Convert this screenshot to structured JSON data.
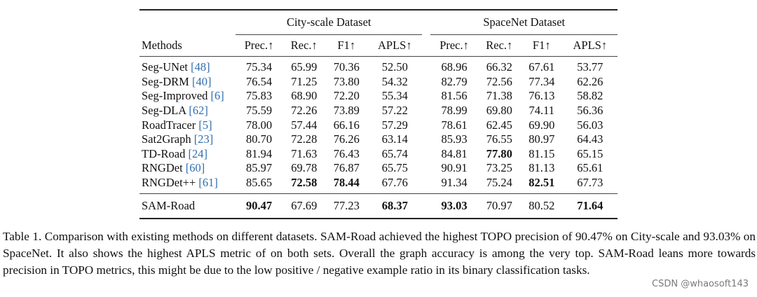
{
  "table": {
    "groups": [
      "City-scale Dataset",
      "SpaceNet Dataset"
    ],
    "methods_header": "Methods",
    "columns": [
      "Prec.↑",
      "Rec.↑",
      "F1↑",
      "APLS↑",
      "Prec.↑",
      "Rec.↑",
      "F1↑",
      "APLS↑"
    ],
    "rows": [
      {
        "name": "Seg-UNet ",
        "ref": "[48]",
        "values": [
          "75.34",
          "65.99",
          "70.36",
          "52.50",
          "68.96",
          "66.32",
          "67.61",
          "53.77"
        ],
        "bold": []
      },
      {
        "name": "Seg-DRM ",
        "ref": "[40]",
        "values": [
          "76.54",
          "71.25",
          "73.80",
          "54.32",
          "82.79",
          "72.56",
          "77.34",
          "62.26"
        ],
        "bold": []
      },
      {
        "name": "Seg-Improved ",
        "ref": "[6]",
        "values": [
          "75.83",
          "68.90",
          "72.20",
          "55.34",
          "81.56",
          "71.38",
          "76.13",
          "58.82"
        ],
        "bold": []
      },
      {
        "name": "Seg-DLA ",
        "ref": "[62]",
        "values": [
          "75.59",
          "72.26",
          "73.89",
          "57.22",
          "78.99",
          "69.80",
          "74.11",
          "56.36"
        ],
        "bold": []
      },
      {
        "name": "RoadTracer ",
        "ref": "[5]",
        "values": [
          "78.00",
          "57.44",
          "66.16",
          "57.29",
          "78.61",
          "62.45",
          "69.90",
          "56.03"
        ],
        "bold": []
      },
      {
        "name": "Sat2Graph ",
        "ref": "[23]",
        "values": [
          "80.70",
          "72.28",
          "76.26",
          "63.14",
          "85.93",
          "76.55",
          "80.97",
          "64.43"
        ],
        "bold": []
      },
      {
        "name": "TD-Road ",
        "ref": "[24]",
        "values": [
          "81.94",
          "71.63",
          "76.43",
          "65.74",
          "84.81",
          "77.80",
          "81.15",
          "65.15"
        ],
        "bold": [
          5
        ]
      },
      {
        "name": "RNGDet ",
        "ref": "[60]",
        "values": [
          "85.97",
          "69.78",
          "76.87",
          "65.75",
          "90.91",
          "73.25",
          "81.13",
          "65.61"
        ],
        "bold": []
      },
      {
        "name": "RNGDet++ ",
        "ref": "[61]",
        "values": [
          "85.65",
          "72.58",
          "78.44",
          "67.76",
          "91.34",
          "75.24",
          "82.51",
          "67.73"
        ],
        "bold": [
          1,
          2,
          6
        ]
      }
    ],
    "final_row": {
      "name": "SAM-Road",
      "values": [
        "90.47",
        "67.69",
        "77.23",
        "68.37",
        "93.03",
        "70.97",
        "80.52",
        "71.64"
      ],
      "bold": [
        0,
        3,
        4,
        7
      ]
    }
  },
  "caption": "Table 1. Comparison with existing methods on different datasets. SAM-Road achieved the highest TOPO precision of 90.47% on City-scale and 93.03% on SpaceNet. It also shows the highest APLS metric of on both sets. Overall the graph accuracy is among the very top. SAM-Road leans more towards precision in TOPO metrics, this might be due to the low positive / negative example ratio in its binary classification tasks.",
  "watermark": "CSDN @whaosoft143"
}
